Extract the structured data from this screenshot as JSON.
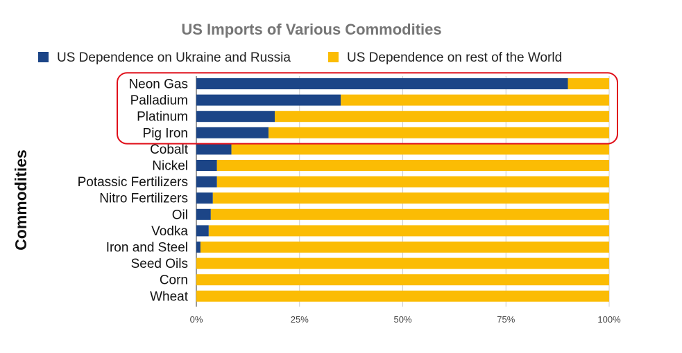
{
  "chart_data": {
    "type": "bar",
    "orientation": "horizontal",
    "stacked": "100%",
    "title": "US Imports of Various Commodities",
    "xlabel": "",
    "ylabel": "Commodities",
    "xlim": [
      0,
      100
    ],
    "x_ticks": [
      "0%",
      "25%",
      "50%",
      "75%",
      "100%"
    ],
    "grid": "vertical",
    "legend_position": "top",
    "categories": [
      "Neon Gas",
      "Palladium",
      "Platinum",
      "Pig Iron",
      "Cobalt",
      "Nickel",
      "Potassic Fertilizers",
      "Nitro Fertilizers",
      "Oil",
      "Vodka",
      "Iron and Steel",
      "Seed Oils",
      "Corn",
      "Wheat"
    ],
    "series": [
      {
        "name": "US Dependence on Ukraine and Russia",
        "color": "#1c4587",
        "values": [
          90,
          35,
          19,
          17.5,
          8.5,
          5,
          5,
          4,
          3.5,
          3,
          1,
          0,
          0,
          0
        ]
      },
      {
        "name": "US Dependence on rest of the World",
        "color": "#fbbc04",
        "values": [
          10,
          65,
          81,
          82.5,
          91.5,
          95,
          95,
          96,
          96.5,
          97,
          99,
          100,
          100,
          100
        ]
      }
    ],
    "annotation": {
      "type": "rounded-rectangle",
      "color": "#e0101b",
      "highlighted_categories": [
        "Neon Gas",
        "Palladium",
        "Platinum",
        "Pig Iron"
      ]
    }
  }
}
